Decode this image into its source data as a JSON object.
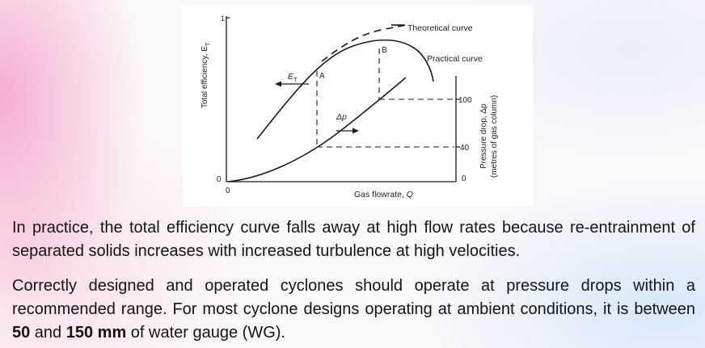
{
  "figure": {
    "y_axis_label": "Total efficiency, E",
    "y_axis_label_sub": "T",
    "x_axis_label_prefix": "Gas flowrate, ",
    "x_axis_label_var": "Q",
    "right_axis_label_line1": "Pressure drop, Δp",
    "right_axis_label_line2": "(metres of gas column)",
    "left_tick_top": "1",
    "left_tick_bottom": "0",
    "x_tick_origin": "0",
    "right_ticks": [
      "100",
      "40",
      "0"
    ],
    "curve_labels": {
      "theoretical": "Theoretical curve",
      "practical": "Practical curve",
      "efficiency_E": "E",
      "efficiency_sub": "T",
      "delta_p": "Δp",
      "point_a": "A",
      "point_b": "B"
    },
    "line_styles": {
      "theoretical": "dashed",
      "practical": "solid",
      "pressure_drop": "solid",
      "guides": "dashed"
    }
  },
  "paragraph1": "In practice, the total efficiency curve falls away at high flow rates because re-entrainment of separated solids increases with increased turbulence at high velocities.",
  "paragraph2": {
    "before": "Correctly designed and operated cyclones should operate at pressure drops within a recommended range. For most cyclone designs operating at ambient conditions, it is between ",
    "bold1": "50",
    "middle": " and ",
    "bold2": "150 mm",
    "after": " of water gauge (WG)."
  },
  "colors": {
    "line": "#1a1a1a",
    "text": "#141414",
    "figure_background": "#ffffff"
  }
}
